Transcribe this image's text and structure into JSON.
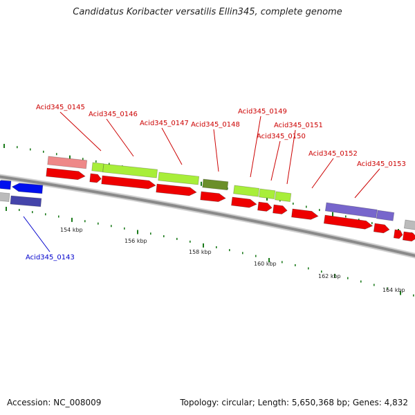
{
  "title": "Candidatus Koribacter versatilis Ellin345, complete genome",
  "footer": {
    "accession": "Accession: NC_008009",
    "summary": "Topology: circular; Length: 5,650,368 bp; Genes: 4,832"
  },
  "scale": {
    "ticks": [
      "154 kbp",
      "156 kbp",
      "158 kbp",
      "160 kbp",
      "162 kbp",
      "164 kbp"
    ]
  },
  "genes": [
    {
      "label": "Acid345_0145",
      "color": "#cc0000"
    },
    {
      "label": "Acid345_0146",
      "color": "#cc0000"
    },
    {
      "label": "Acid345_0147",
      "color": "#cc0000"
    },
    {
      "label": "Acid345_0148",
      "color": "#cc0000"
    },
    {
      "label": "Acid345_0149",
      "color": "#cc0000"
    },
    {
      "label": "Acid345_0150",
      "color": "#cc0000"
    },
    {
      "label": "Acid345_0151",
      "color": "#cc0000"
    },
    {
      "label": "Acid345_0152",
      "color": "#cc0000"
    },
    {
      "label": "Acid345_0153",
      "color": "#cc0000"
    },
    {
      "label": "Acid345_0143",
      "color": "#0000cc"
    }
  ],
  "colors": {
    "backbone": "#8a8a8a",
    "forward_cds": "#ee0000",
    "reverse_cds": "#0010ee",
    "feature_green": "#a8ee3a",
    "feature_dark_green": "#6b8f2a",
    "feature_pink": "#ee8888",
    "feature_purple": "#7766cc",
    "feature_grey": "#bbbbbb",
    "tick_green": "#1a7a1a"
  }
}
